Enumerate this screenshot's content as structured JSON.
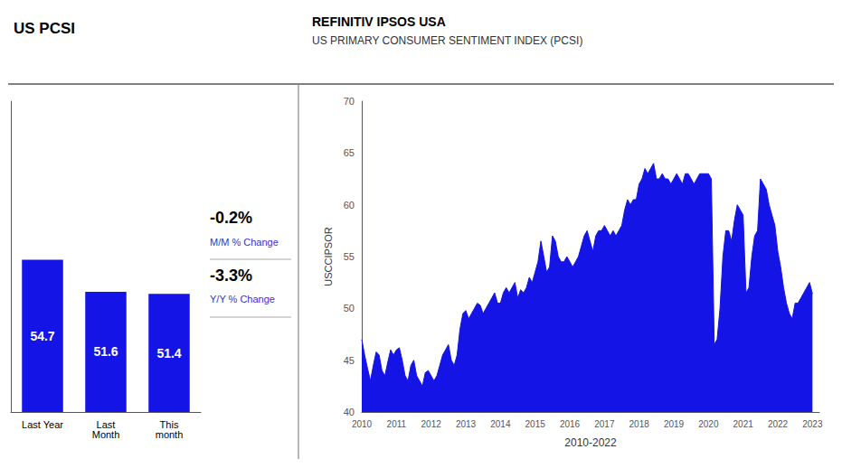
{
  "chart_data": [
    {
      "type": "bar",
      "title": "US PCSI",
      "categories": [
        "Last Year",
        "Last\nMonth",
        "This\nmonth"
      ],
      "values": [
        54.7,
        51.6,
        51.4
      ],
      "color": "#1414e6",
      "ylim": [
        40,
        70
      ],
      "data_labels": true,
      "tick_labels": "x",
      "grid": false,
      "annotations": [
        {
          "text": "-0.2%",
          "color": "#000000"
        },
        {
          "text": "M/M % Change",
          "color": "#3333cc"
        },
        {
          "text": "-3.3%",
          "color": "#000000"
        },
        {
          "text": "Y/Y % Change",
          "color": "#3333cc"
        }
      ]
    },
    {
      "type": "area",
      "title": "REFINITIV IPSOS USA",
      "subtitle": "US PRIMARY CONSUMER SENTIMENT INDEX (PCSI)",
      "xlabel": "2010-2022",
      "ylabel": "USCCIPSOR",
      "color": "#1414e6",
      "grid": false,
      "xlim": [
        2010,
        2023.2
      ],
      "ylim": [
        40,
        70
      ],
      "xticks": [
        2010,
        2011,
        2012,
        2013,
        2014,
        2015,
        2016,
        2017,
        2018,
        2019,
        2020,
        2021,
        2022,
        2023
      ],
      "yticks": [
        40,
        45,
        50,
        55,
        60,
        65,
        70
      ],
      "x": [
        2010.0,
        2010.083,
        2010.167,
        2010.25,
        2010.333,
        2010.417,
        2010.5,
        2010.583,
        2010.667,
        2010.75,
        2010.833,
        2010.917,
        2011.0,
        2011.083,
        2011.167,
        2011.25,
        2011.333,
        2011.417,
        2011.5,
        2011.583,
        2011.667,
        2011.75,
        2011.833,
        2011.917,
        2012.0,
        2012.083,
        2012.167,
        2012.25,
        2012.333,
        2012.417,
        2012.5,
        2012.583,
        2012.667,
        2012.75,
        2012.833,
        2012.917,
        2013.0,
        2013.083,
        2013.167,
        2013.25,
        2013.333,
        2013.417,
        2013.5,
        2013.583,
        2013.667,
        2013.75,
        2013.833,
        2013.917,
        2014.0,
        2014.083,
        2014.167,
        2014.25,
        2014.333,
        2014.417,
        2014.5,
        2014.583,
        2014.667,
        2014.75,
        2014.833,
        2014.917,
        2015.0,
        2015.083,
        2015.167,
        2015.25,
        2015.333,
        2015.417,
        2015.5,
        2015.583,
        2015.667,
        2015.75,
        2015.833,
        2015.917,
        2016.0,
        2016.083,
        2016.167,
        2016.25,
        2016.333,
        2016.417,
        2016.5,
        2016.583,
        2016.667,
        2016.75,
        2016.833,
        2016.917,
        2017.0,
        2017.083,
        2017.167,
        2017.25,
        2017.333,
        2017.417,
        2017.5,
        2017.583,
        2017.667,
        2017.75,
        2017.833,
        2017.917,
        2018.0,
        2018.083,
        2018.167,
        2018.25,
        2018.333,
        2018.417,
        2018.5,
        2018.583,
        2018.667,
        2018.75,
        2018.833,
        2018.917,
        2019.0,
        2019.083,
        2019.167,
        2019.25,
        2019.333,
        2019.417,
        2019.5,
        2019.583,
        2019.667,
        2019.75,
        2019.833,
        2019.917,
        2020.0,
        2020.083,
        2020.167,
        2020.25,
        2020.333,
        2020.417,
        2020.5,
        2020.583,
        2020.667,
        2020.75,
        2020.833,
        2020.917,
        2021.0,
        2021.083,
        2021.167,
        2021.25,
        2021.333,
        2021.417,
        2021.5,
        2021.583,
        2021.667,
        2021.75,
        2021.833,
        2021.917,
        2022.0,
        2022.083,
        2022.167,
        2022.25,
        2022.333,
        2022.417,
        2022.5,
        2022.583,
        2022.667,
        2022.75,
        2022.833,
        2022.917,
        2023.0
      ],
      "values": [
        47.0,
        45.5,
        44.2,
        43.0,
        44.5,
        45.8,
        45.5,
        44.0,
        43.5,
        44.8,
        46.0,
        45.5,
        46.0,
        46.2,
        45.0,
        43.5,
        43.0,
        44.5,
        45.0,
        43.5,
        43.0,
        42.5,
        43.8,
        44.0,
        43.5,
        43.0,
        43.5,
        44.5,
        45.5,
        46.0,
        46.5,
        45.0,
        44.5,
        45.5,
        48.0,
        49.5,
        49.8,
        49.0,
        49.5,
        50.0,
        50.5,
        50.3,
        49.5,
        50.0,
        50.5,
        51.0,
        51.5,
        50.5,
        50.5,
        51.5,
        52.0,
        51.5,
        52.0,
        52.5,
        51.0,
        51.8,
        51.5,
        52.0,
        53.0,
        52.5,
        53.5,
        54.5,
        56.5,
        55.0,
        53.5,
        54.0,
        57.0,
        56.5,
        55.0,
        54.5,
        54.5,
        55.0,
        54.5,
        54.0,
        54.5,
        55.0,
        56.0,
        57.0,
        57.5,
        56.5,
        55.5,
        57.0,
        57.5,
        57.5,
        58.0,
        57.5,
        57.0,
        57.5,
        57.0,
        57.5,
        58.0,
        59.5,
        60.5,
        60.0,
        60.5,
        60.5,
        62.0,
        62.5,
        63.5,
        63.0,
        63.5,
        64.0,
        62.5,
        62.5,
        63.0,
        62.5,
        62.5,
        62.0,
        62.5,
        63.0,
        62.5,
        62.0,
        63.0,
        63.0,
        62.5,
        62.0,
        62.5,
        63.0,
        63.0,
        63.0,
        63.0,
        62.5,
        46.5,
        47.0,
        50.0,
        55.0,
        57.5,
        57.5,
        56.5,
        58.5,
        60.0,
        59.5,
        59.0,
        51.5,
        52.0,
        55.0,
        57.0,
        57.5,
        62.5,
        62.0,
        61.5,
        60.0,
        59.0,
        58.0,
        55.5,
        54.0,
        52.0,
        50.5,
        49.5,
        49.0,
        50.5,
        50.5,
        51.0,
        51.5,
        52.0,
        52.5,
        51.4
      ]
    }
  ]
}
